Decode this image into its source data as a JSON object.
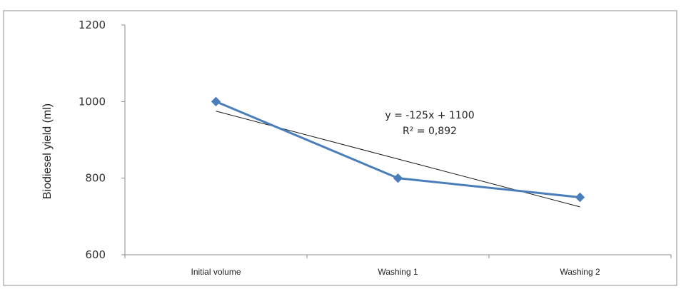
{
  "chart_data": {
    "type": "line",
    "title": "",
    "xlabel": "",
    "ylabel": "Biodiesel yield (ml)",
    "categories": [
      "Initial volume",
      "Washing 1",
      "Washing 2"
    ],
    "series": [
      {
        "values": [
          1000,
          800,
          750
        ],
        "color": "#4a7ebb",
        "marker": "diamond"
      }
    ],
    "trendline": {
      "type": "linear",
      "slope": -125,
      "intercept": 1100,
      "color": "#1a1a1a",
      "equation": "y = -125x + 1100",
      "r_squared": "R² = 0,892"
    },
    "ylim": [
      600,
      1200
    ],
    "yticks": [
      600,
      800,
      1000,
      1200
    ],
    "grid": false,
    "legend": "none"
  }
}
